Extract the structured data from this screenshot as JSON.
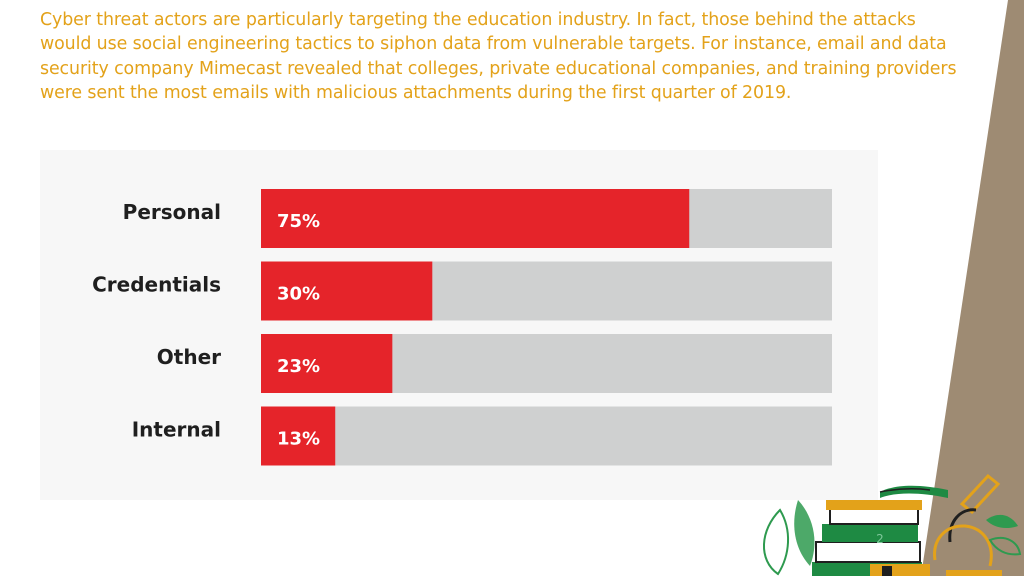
{
  "slide": {
    "paragraph": "Cyber threat actors are particularly targeting the education industry. In fact, those behind the attacks would use social engineering tactics to siphon data from vulnerable targets. For instance, email and data security company Mimecast revealed that colleges, private educational companies, and training providers were sent the most emails with malicious attachments during the first quarter of 2019.",
    "page_number": "2"
  },
  "colors": {
    "text": "#e3a21a",
    "bar_fill": "#e5242a",
    "bar_track": "#cfd0d0",
    "stripe": "#9e8b73"
  },
  "chart_data": {
    "type": "bar",
    "orientation": "horizontal",
    "categories": [
      "Personal",
      "Credentials",
      "Other",
      "Internal"
    ],
    "values": [
      75,
      30,
      23,
      13
    ],
    "value_labels": [
      "75%",
      "30%",
      "23%",
      "13%"
    ],
    "xlim": [
      0,
      100
    ],
    "grid": false
  }
}
